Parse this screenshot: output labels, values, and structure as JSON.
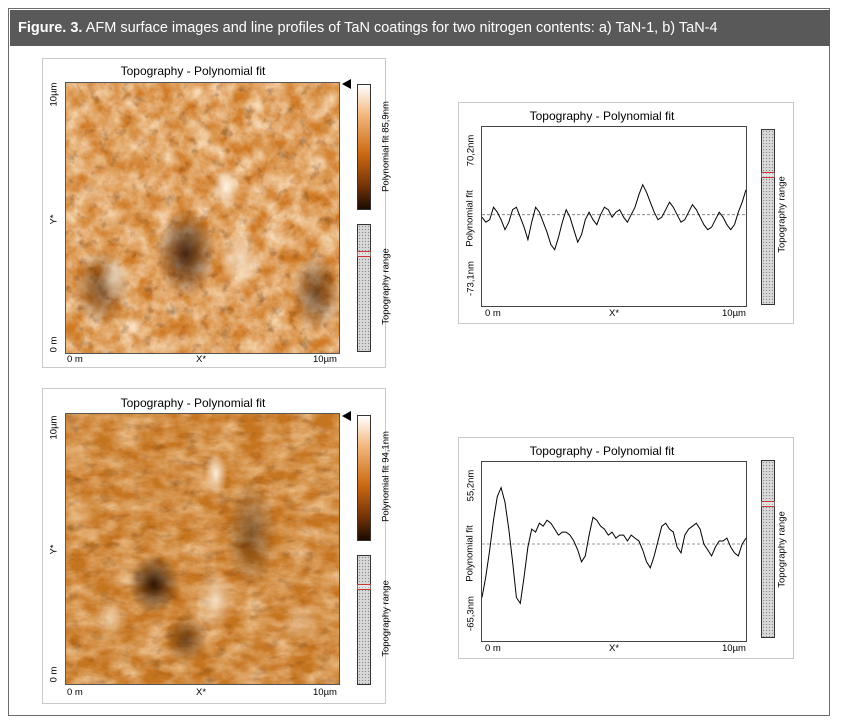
{
  "caption": {
    "label": "Figure. 3.",
    "text": " AFM surface images and line profiles of TaN coatings for two nitrogen contents: a) TaN-1, b) TaN-4"
  },
  "panels": [
    {
      "image": {
        "title": "Topography - Polynomial fit",
        "colorbar_label": "Polynomial fit 85,9nm",
        "range_label": "Topography range",
        "y_top": "10µm",
        "y_mid": "Y*",
        "y_bottom": "0 m",
        "x_left": "0 m",
        "x_mid": "X*",
        "x_right": "10µm"
      },
      "profile": {
        "title": "Topography - Polynomial fit",
        "ylabel": "Polynomial fit",
        "y_top": "70,2nm",
        "y_bottom": "-73,1nm",
        "x_left": "0 m",
        "x_mid": "X*",
        "x_right": "10µm",
        "range_label": "Topography range"
      }
    },
    {
      "image": {
        "title": "Topography - Polynomial fit",
        "colorbar_label": "Polynomial fit 94,1nm",
        "range_label": "Topography range",
        "y_top": "10µm",
        "y_mid": "Y*",
        "y_bottom": "0 m",
        "x_left": "0 m",
        "x_mid": "X*",
        "x_right": "10µm"
      },
      "profile": {
        "title": "Topography - Polynomial fit",
        "ylabel": "Polynomial fit",
        "y_top": "55,2nm",
        "y_bottom": "-65,3nm",
        "x_left": "0 m",
        "x_mid": "X*",
        "x_right": "10µm",
        "range_label": "Topography range"
      }
    }
  ],
  "chart_data": [
    {
      "type": "line",
      "x_range": [
        0,
        10
      ],
      "ylim": [
        -73.1,
        70.2
      ],
      "y": [
        -2,
        -6,
        -4,
        6,
        2,
        -4,
        -12,
        -6,
        4,
        6,
        -2,
        -10,
        -20,
        -6,
        6,
        2,
        -6,
        -14,
        -24,
        -28,
        -18,
        -6,
        4,
        -2,
        -12,
        -22,
        -16,
        -4,
        2,
        -4,
        -8,
        0,
        6,
        4,
        -2,
        2,
        4,
        -2,
        -6,
        0,
        6,
        16,
        24,
        18,
        10,
        2,
        -4,
        -2,
        4,
        10,
        6,
        0,
        -6,
        -4,
        2,
        8,
        4,
        -2,
        -8,
        -12,
        -10,
        -4,
        2,
        -2,
        -8,
        -12,
        -8,
        2,
        10,
        20
      ]
    },
    {
      "type": "line",
      "x_range": [
        0,
        10
      ],
      "ylim": [
        -65.3,
        55.2
      ],
      "y": [
        -36,
        -22,
        -4,
        16,
        32,
        38,
        28,
        10,
        -12,
        -36,
        -40,
        -22,
        -2,
        10,
        8,
        14,
        12,
        16,
        14,
        10,
        6,
        8,
        8,
        6,
        2,
        -4,
        -12,
        -8,
        6,
        18,
        16,
        12,
        10,
        6,
        8,
        4,
        6,
        6,
        2,
        6,
        4,
        2,
        -4,
        -12,
        -16,
        -8,
        2,
        12,
        14,
        10,
        8,
        -2,
        -6,
        6,
        10,
        12,
        14,
        10,
        0,
        -4,
        -8,
        -2,
        2,
        2,
        4,
        -2,
        -6,
        -8,
        0,
        4
      ]
    }
  ]
}
